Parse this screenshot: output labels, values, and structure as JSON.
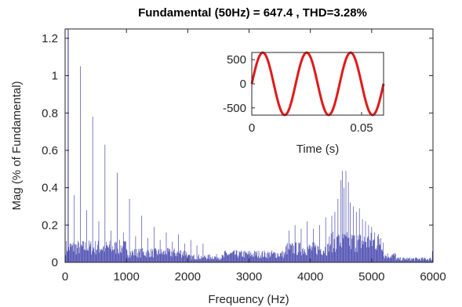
{
  "chart_data": [
    {
      "type": "bar",
      "title": "Fundamental (50Hz) = 647.4 , THD=3.28%",
      "xlabel": "Frequency (Hz)",
      "ylabel": "Mag (% of Fundamental)",
      "xlim": [
        0,
        6000
      ],
      "ylim": [
        0,
        1.25
      ],
      "xticks": [
        "0",
        "1000",
        "2000",
        "3000",
        "4000",
        "5000",
        "6000"
      ],
      "yticks": [
        "0",
        "0.2",
        "0.4",
        "0.6",
        "0.8",
        "1",
        "1.2"
      ],
      "bar_color": "#4a4ab0",
      "bin_width_hz": 10,
      "fundamental_clipped": true,
      "harmonics": [
        {
          "f": 150,
          "v": 0.36
        },
        {
          "f": 250,
          "v": 1.05
        },
        {
          "f": 350,
          "v": 0.28
        },
        {
          "f": 450,
          "v": 0.78
        },
        {
          "f": 550,
          "v": 0.22
        },
        {
          "f": 650,
          "v": 0.63
        },
        {
          "f": 750,
          "v": 0.17
        },
        {
          "f": 850,
          "v": 0.48
        },
        {
          "f": 950,
          "v": 0.16
        },
        {
          "f": 1050,
          "v": 0.34
        },
        {
          "f": 1150,
          "v": 0.14
        },
        {
          "f": 1250,
          "v": 0.25
        },
        {
          "f": 1350,
          "v": 0.13
        },
        {
          "f": 1450,
          "v": 0.19
        },
        {
          "f": 1550,
          "v": 0.12
        },
        {
          "f": 1650,
          "v": 0.16
        },
        {
          "f": 1750,
          "v": 0.11
        },
        {
          "f": 1850,
          "v": 0.15
        },
        {
          "f": 1950,
          "v": 0.1
        },
        {
          "f": 2050,
          "v": 0.12
        },
        {
          "f": 2150,
          "v": 0.09
        },
        {
          "f": 2250,
          "v": 0.1
        }
      ],
      "cluster": [
        {
          "f": 3650,
          "v": 0.17
        },
        {
          "f": 3750,
          "v": 0.2
        },
        {
          "f": 3850,
          "v": 0.18
        },
        {
          "f": 3950,
          "v": 0.22
        },
        {
          "f": 4050,
          "v": 0.18
        },
        {
          "f": 4150,
          "v": 0.2
        },
        {
          "f": 4250,
          "v": 0.24
        },
        {
          "f": 4350,
          "v": 0.25
        },
        {
          "f": 4400,
          "v": 0.27
        },
        {
          "f": 4450,
          "v": 0.34
        },
        {
          "f": 4500,
          "v": 0.44
        },
        {
          "f": 4520,
          "v": 0.49
        },
        {
          "f": 4550,
          "v": 0.4
        },
        {
          "f": 4580,
          "v": 0.49
        },
        {
          "f": 4620,
          "v": 0.43
        },
        {
          "f": 4650,
          "v": 0.32
        },
        {
          "f": 4700,
          "v": 0.3
        },
        {
          "f": 4750,
          "v": 0.27
        },
        {
          "f": 4800,
          "v": 0.29
        },
        {
          "f": 4850,
          "v": 0.23
        },
        {
          "f": 4900,
          "v": 0.22
        },
        {
          "f": 4950,
          "v": 0.2
        },
        {
          "f": 5000,
          "v": 0.19
        },
        {
          "f": 5050,
          "v": 0.16
        },
        {
          "f": 5100,
          "v": 0.14
        },
        {
          "f": 5150,
          "v": 0.13
        }
      ],
      "noise_floor": {
        "segments": [
          {
            "from": 0,
            "to": 1000,
            "level": 0.11
          },
          {
            "from": 1000,
            "to": 2000,
            "level": 0.07
          },
          {
            "from": 2000,
            "to": 2600,
            "level": 0.04
          },
          {
            "from": 2600,
            "to": 3600,
            "level": 0.06
          },
          {
            "from": 3600,
            "to": 4300,
            "level": 0.1
          },
          {
            "from": 4300,
            "to": 5200,
            "level": 0.15
          },
          {
            "from": 5200,
            "to": 5400,
            "level": 0.05
          },
          {
            "from": 5400,
            "to": 6000,
            "level": 0.025
          }
        ],
        "end_rise": {
          "f": 5990,
          "v": 0.06
        }
      }
    },
    {
      "type": "line",
      "xlabel": "Time (s)",
      "ylabel": "",
      "xlim": [
        0,
        0.06
      ],
      "ylim": [
        -650,
        650
      ],
      "xticks": [
        "0",
        "0.05"
      ],
      "yticks": [
        "500",
        "0",
        "-500"
      ],
      "series": [
        {
          "frequency_hz": 50,
          "amplitude": 647.4,
          "color": "#e11919"
        }
      ]
    }
  ]
}
